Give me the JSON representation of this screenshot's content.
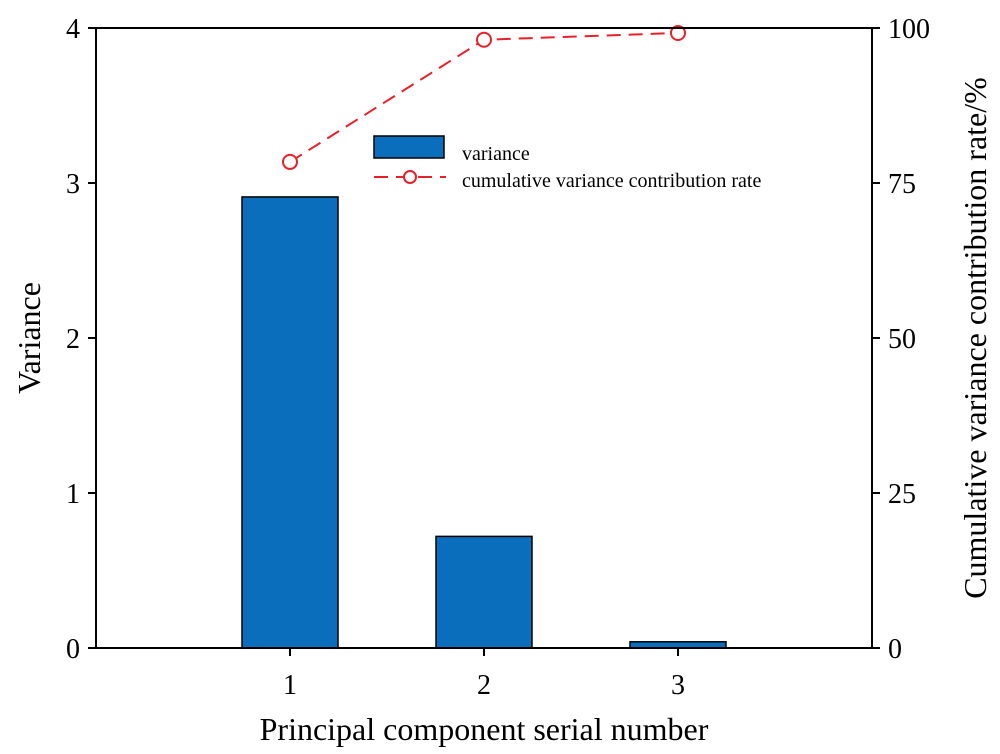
{
  "chart_data": {
    "type": "bar",
    "categories": [
      "1",
      "2",
      "3"
    ],
    "xlabel": "Principal component serial number",
    "ylabel": "Variance",
    "y2label": "Cumulative variance contribution rate/%",
    "ylim": [
      0,
      4
    ],
    "y2lim": [
      0,
      100
    ],
    "xlim": [
      0.0,
      4.0
    ],
    "yticks": [
      "0",
      "1",
      "2",
      "3",
      "4"
    ],
    "y2ticks": [
      "0",
      "25",
      "50",
      "75",
      "100"
    ],
    "grid": false,
    "legend_position": "top-center",
    "series": [
      {
        "name": "variance",
        "type": "bar",
        "axis": "left",
        "color": "#0a6ebd",
        "values": [
          2.91,
          0.72,
          0.04
        ]
      },
      {
        "name": "cumulative variance contribution rate",
        "type": "line",
        "axis": "right",
        "color": "#e8202a",
        "line_style": "dashed",
        "marker": "open-circle",
        "values": [
          78.4,
          98.1,
          99.2
        ]
      }
    ]
  }
}
